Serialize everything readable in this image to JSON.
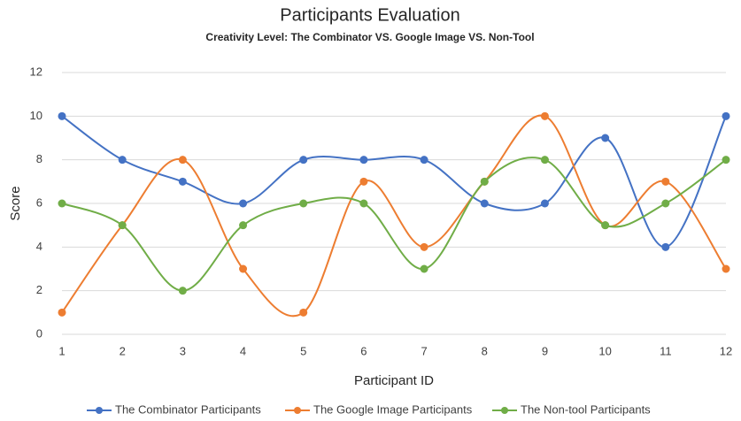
{
  "chart_data": {
    "type": "line",
    "title": "Participants Evaluation",
    "subtitle": "Creativity Level: The Combinator VS. Google Image VS. Non-Tool",
    "x_label": "Participant ID",
    "y_label": "Score",
    "x": [
      1,
      2,
      3,
      4,
      5,
      6,
      7,
      8,
      9,
      10,
      11,
      12
    ],
    "xlim": [
      1,
      12
    ],
    "xticks": [
      1,
      2,
      3,
      4,
      5,
      6,
      7,
      8,
      9,
      10,
      11,
      12
    ],
    "ylim": [
      0,
      12
    ],
    "yticks": [
      0,
      2,
      4,
      6,
      8,
      10,
      12
    ],
    "grid": true,
    "smooth": true,
    "legend": "bottom",
    "series": [
      {
        "name": "The Combinator Participants",
        "color": "#4472c4",
        "values": [
          10,
          8,
          7,
          6,
          8,
          8,
          8,
          6,
          6,
          9,
          4,
          10
        ]
      },
      {
        "name": "The Google Image Participants",
        "color": "#ed7d31",
        "values": [
          1,
          5,
          8,
          3,
          1,
          7,
          4,
          7,
          10,
          5,
          7,
          3
        ]
      },
      {
        "name": "The Non-tool Participants",
        "color": "#70ad47",
        "values": [
          6,
          5,
          2,
          5,
          6,
          6,
          3,
          7,
          8,
          5,
          6,
          8
        ]
      }
    ]
  }
}
